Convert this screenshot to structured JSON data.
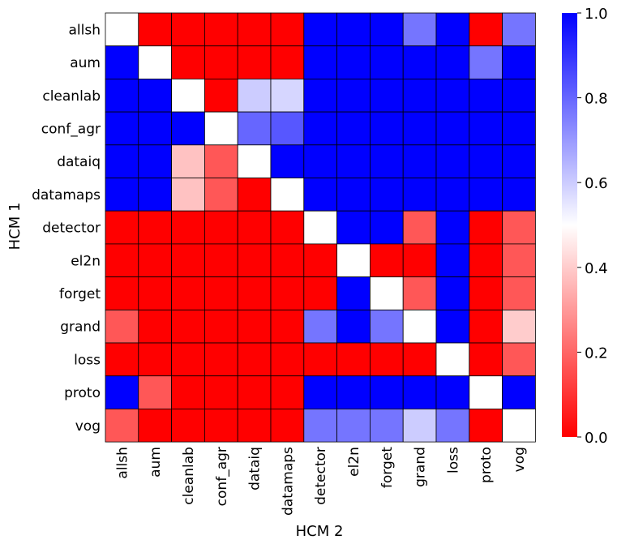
{
  "chart_data": {
    "type": "heatmap",
    "title": "",
    "xlabel": "HCM 2",
    "ylabel": "HCM 1",
    "rows": [
      "allsh",
      "aum",
      "cleanlab",
      "conf_agr",
      "dataiq",
      "datamaps",
      "detector",
      "el2n",
      "forget",
      "grand",
      "loss",
      "proto",
      "vog"
    ],
    "columns": [
      "allsh",
      "aum",
      "cleanlab",
      "conf_agr",
      "dataiq",
      "datamaps",
      "detector",
      "el2n",
      "forget",
      "grand",
      "loss",
      "proto",
      "vog"
    ],
    "values": [
      [
        0.5,
        0.0,
        0.0,
        0.0,
        0.0,
        0.0,
        1.0,
        1.0,
        1.0,
        0.77,
        1.0,
        0.0,
        0.77
      ],
      [
        1.0,
        0.5,
        0.0,
        0.0,
        0.0,
        0.0,
        1.0,
        1.0,
        1.0,
        1.0,
        1.0,
        0.77,
        1.0
      ],
      [
        1.0,
        1.0,
        0.5,
        0.0,
        0.6,
        0.58,
        1.0,
        1.0,
        1.0,
        1.0,
        1.0,
        1.0,
        1.0
      ],
      [
        1.0,
        1.0,
        1.0,
        0.5,
        0.8,
        0.83,
        1.0,
        1.0,
        1.0,
        1.0,
        1.0,
        1.0,
        1.0
      ],
      [
        1.0,
        1.0,
        0.38,
        0.17,
        0.5,
        1.0,
        1.0,
        1.0,
        1.0,
        1.0,
        1.0,
        1.0,
        1.0
      ],
      [
        1.0,
        1.0,
        0.38,
        0.17,
        0.0,
        0.5,
        1.0,
        1.0,
        1.0,
        1.0,
        1.0,
        1.0,
        1.0
      ],
      [
        0.0,
        0.0,
        0.0,
        0.0,
        0.0,
        0.0,
        0.5,
        1.0,
        1.0,
        0.17,
        1.0,
        0.0,
        0.17
      ],
      [
        0.0,
        0.0,
        0.0,
        0.0,
        0.0,
        0.0,
        0.0,
        0.5,
        0.0,
        0.0,
        1.0,
        0.0,
        0.17
      ],
      [
        0.0,
        0.0,
        0.0,
        0.0,
        0.0,
        0.0,
        0.0,
        1.0,
        0.5,
        0.17,
        1.0,
        0.0,
        0.17
      ],
      [
        0.17,
        0.0,
        0.0,
        0.0,
        0.0,
        0.0,
        0.77,
        1.0,
        0.77,
        0.5,
        1.0,
        0.0,
        0.4
      ],
      [
        0.0,
        0.0,
        0.0,
        0.0,
        0.0,
        0.0,
        0.0,
        0.0,
        0.0,
        0.0,
        0.5,
        0.0,
        0.17
      ],
      [
        1.0,
        0.17,
        0.0,
        0.0,
        0.0,
        0.0,
        1.0,
        1.0,
        1.0,
        1.0,
        1.0,
        0.5,
        1.0
      ],
      [
        0.17,
        0.0,
        0.0,
        0.0,
        0.0,
        0.0,
        0.77,
        0.77,
        0.77,
        0.6,
        0.77,
        0.0,
        0.5
      ]
    ],
    "colormap": "bwr_r",
    "color_low": "#ff0000",
    "color_mid": "#ffffff",
    "color_high": "#0000ff",
    "vmin": 0.0,
    "vmax": 1.0,
    "colorbar_ticks": [
      "0.0",
      "0.2",
      "0.4",
      "0.6",
      "0.8",
      "1.0"
    ],
    "colorbar_tick_values": [
      0.0,
      0.2,
      0.4,
      0.6,
      0.8,
      1.0
    ],
    "grid": true,
    "legend": "colorbar-right"
  }
}
